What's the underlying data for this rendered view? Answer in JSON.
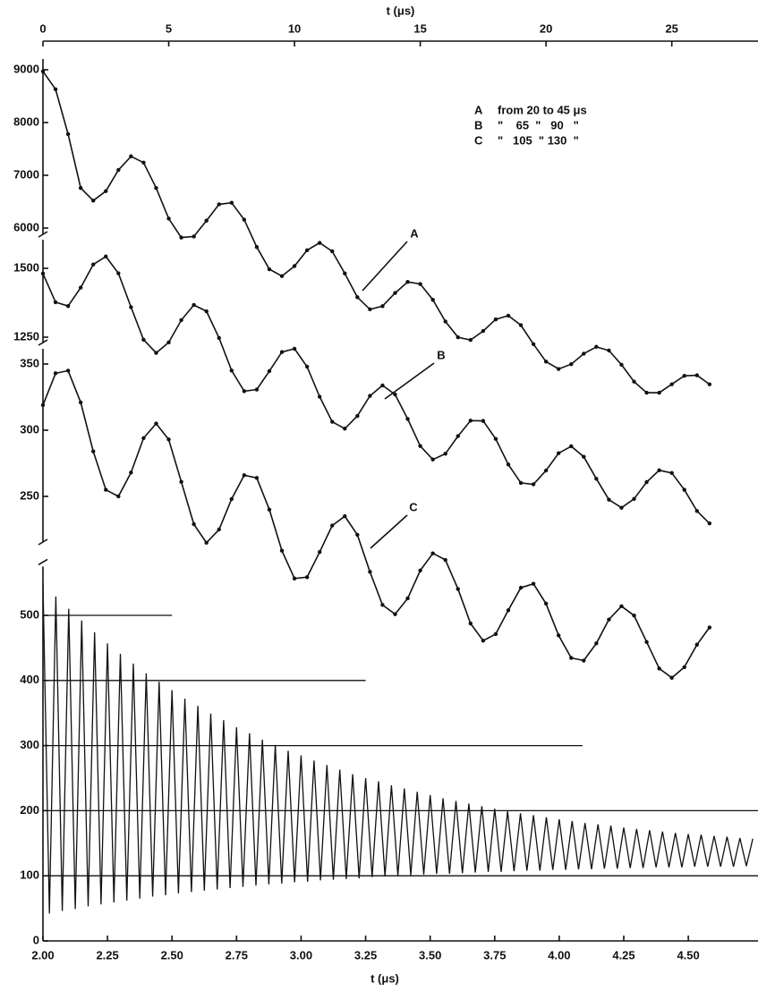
{
  "chart_data": [
    {
      "type": "line",
      "x_label": "t (μs)",
      "x": [
        0,
        0.5,
        1,
        1.5,
        2,
        2.5,
        3,
        3.5,
        4,
        4.5,
        5,
        5.5,
        6,
        6.5,
        7,
        7.5,
        8,
        8.5,
        9,
        9.5,
        10,
        10.5,
        11,
        11.5,
        12,
        12.5,
        13,
        13.5,
        14,
        14.5,
        15,
        15.5,
        16,
        16.5,
        17,
        17.5,
        18,
        18.5,
        19,
        19.5,
        20,
        20.5,
        21,
        21.5,
        22,
        22.5,
        23,
        23.5,
        24,
        24.5,
        25,
        25.5,
        26,
        26.5
      ],
      "xlim": [
        0,
        28
      ],
      "xticks": [
        0,
        5,
        10,
        15,
        20,
        25
      ],
      "series": [
        {
          "name": "A",
          "legend_text": "from 20 to 45 μs",
          "color": "#111111",
          "ylim": [
            2500,
            9200
          ],
          "yticks": [
            6000,
            7000,
            8000,
            9000
          ],
          "values": [
            8970,
            8630,
            7780,
            6760,
            6520,
            6700,
            7100,
            7360,
            7240,
            6760,
            6180,
            5820,
            5840,
            6140,
            6450,
            6480,
            6160,
            5640,
            5220,
            5090,
            5280,
            5580,
            5720,
            5560,
            5140,
            4690,
            4460,
            4520,
            4770,
            4980,
            4940,
            4640,
            4230,
            3930,
            3880,
            4050,
            4270,
            4340,
            4160,
            3800,
            3470,
            3330,
            3420,
            3620,
            3750,
            3680,
            3410,
            3090,
            2880,
            2880,
            3040,
            3200,
            3210,
            3040
          ]
        },
        {
          "name": "B",
          "legend_text": "\"    65  \"   90   \"",
          "color": "#111111",
          "ylim": [
            500,
            1600
          ],
          "yticks": [
            1250,
            1500
          ],
          "values": [
            1481,
            1377,
            1363,
            1430,
            1514,
            1543,
            1482,
            1359,
            1241,
            1193,
            1231,
            1312,
            1367,
            1344,
            1247,
            1129,
            1054,
            1060,
            1127,
            1196,
            1208,
            1143,
            1034,
            943,
            918,
            964,
            1037,
            1075,
            1042,
            953,
            855,
            806,
            827,
            891,
            947,
            946,
            881,
            788,
            721,
            716,
            766,
            829,
            854,
            816,
            736,
            660,
            631,
            663,
            724,
            767,
            757,
            696,
            619,
            574
          ]
        },
        {
          "name": "C",
          "legend_text": "\"   105  \" 130  \"",
          "color": "#111111",
          "ylim": [
            100,
            370
          ],
          "yticks": [
            250,
            300,
            350
          ],
          "values": [
            319,
            343,
            345,
            321,
            284,
            255,
            250,
            268,
            294,
            305,
            293,
            261,
            229,
            215,
            225,
            248,
            266,
            264,
            240,
            209,
            188,
            189,
            208,
            228,
            235,
            221,
            193,
            168,
            161,
            173,
            194,
            207,
            202,
            180,
            154,
            141,
            146,
            164,
            181,
            184,
            169,
            145,
            128,
            126,
            139,
            157,
            167,
            160,
            140,
            120,
            113,
            121,
            138,
            151
          ]
        }
      ]
    },
    {
      "type": "line",
      "x_label": "t (μs)",
      "x": [
        2,
        2.025,
        2.05,
        2.075,
        2.1,
        2.125,
        2.15,
        2.175,
        2.2,
        2.225,
        2.25,
        2.275,
        2.3,
        2.325,
        2.35,
        2.375,
        2.4,
        2.425,
        2.45,
        2.475,
        2.5,
        2.525,
        2.55,
        2.575,
        2.6,
        2.625,
        2.65,
        2.675,
        2.7,
        2.725,
        2.75,
        2.775,
        2.8,
        2.825,
        2.85,
        2.875,
        2.9,
        2.925,
        2.95,
        2.975,
        3,
        3.025,
        3.05,
        3.075,
        3.1,
        3.125,
        3.15,
        3.175,
        3.2,
        3.225,
        3.25,
        3.275,
        3.3,
        3.325,
        3.35,
        3.375,
        3.4,
        3.425,
        3.45,
        3.475,
        3.5,
        3.525,
        3.55,
        3.575,
        3.6,
        3.625,
        3.65,
        3.675,
        3.7,
        3.725,
        3.75,
        3.775,
        3.8,
        3.825,
        3.85,
        3.875,
        3.9,
        3.925,
        3.95,
        3.975,
        4,
        4.025,
        4.05,
        4.075,
        4.1,
        4.125,
        4.15,
        4.175,
        4.2,
        4.225,
        4.25,
        4.275,
        4.3,
        4.325,
        4.35,
        4.375,
        4.4,
        4.425,
        4.45,
        4.475,
        4.5,
        4.525,
        4.55,
        4.575,
        4.6,
        4.625,
        4.65,
        4.675,
        4.7,
        4.725,
        4.75
      ],
      "xlim": [
        2,
        4.77
      ],
      "xticks": [
        {
          "value": 2,
          "label": "2.00"
        },
        2.25,
        {
          "value": 2.5,
          "label": "2.50"
        },
        2.75,
        {
          "value": 3,
          "label": "3.00"
        },
        3.25,
        {
          "value": 3.5,
          "label": "3.50"
        },
        3.75,
        {
          "value": 4,
          "label": "4.00"
        },
        4.25,
        {
          "value": 4.5,
          "label": "4.50"
        }
      ],
      "ylim": [
        0,
        575
      ],
      "yticks": [
        0,
        100,
        200,
        300,
        400,
        500
      ],
      "reference_lines": [
        {
          "y": 500,
          "x_end": 2.5
        },
        {
          "y": 400,
          "x_end": 3.25
        },
        {
          "y": 300,
          "x_end": 4.09
        },
        {
          "y": 200,
          "x_end": 4.77
        },
        {
          "y": 100,
          "x_end": 4.77
        }
      ],
      "color": "#111111",
      "values": [
        550,
        42,
        529,
        46,
        510,
        49,
        492,
        53,
        474,
        56,
        457,
        59,
        441,
        62,
        426,
        65,
        411,
        68,
        398,
        70,
        385,
        73,
        372,
        75,
        361,
        77,
        349,
        79,
        339,
        81,
        328,
        83,
        319,
        85,
        309,
        87,
        301,
        88,
        292,
        90,
        285,
        91,
        277,
        93,
        270,
        94,
        263,
        95,
        256,
        96,
        250,
        98,
        245,
        99,
        239,
        100,
        234,
        101,
        229,
        102,
        224,
        103,
        219,
        103,
        215,
        104,
        211,
        105,
        207,
        106,
        203,
        106,
        199,
        107,
        196,
        108,
        193,
        108,
        190,
        109,
        187,
        109,
        184,
        110,
        181,
        110,
        179,
        111,
        177,
        111,
        174,
        112,
        172,
        112,
        170,
        113,
        168,
        113,
        166,
        113,
        164,
        114,
        163,
        114,
        161,
        114,
        160,
        114,
        158,
        115,
        157
      ]
    }
  ]
}
